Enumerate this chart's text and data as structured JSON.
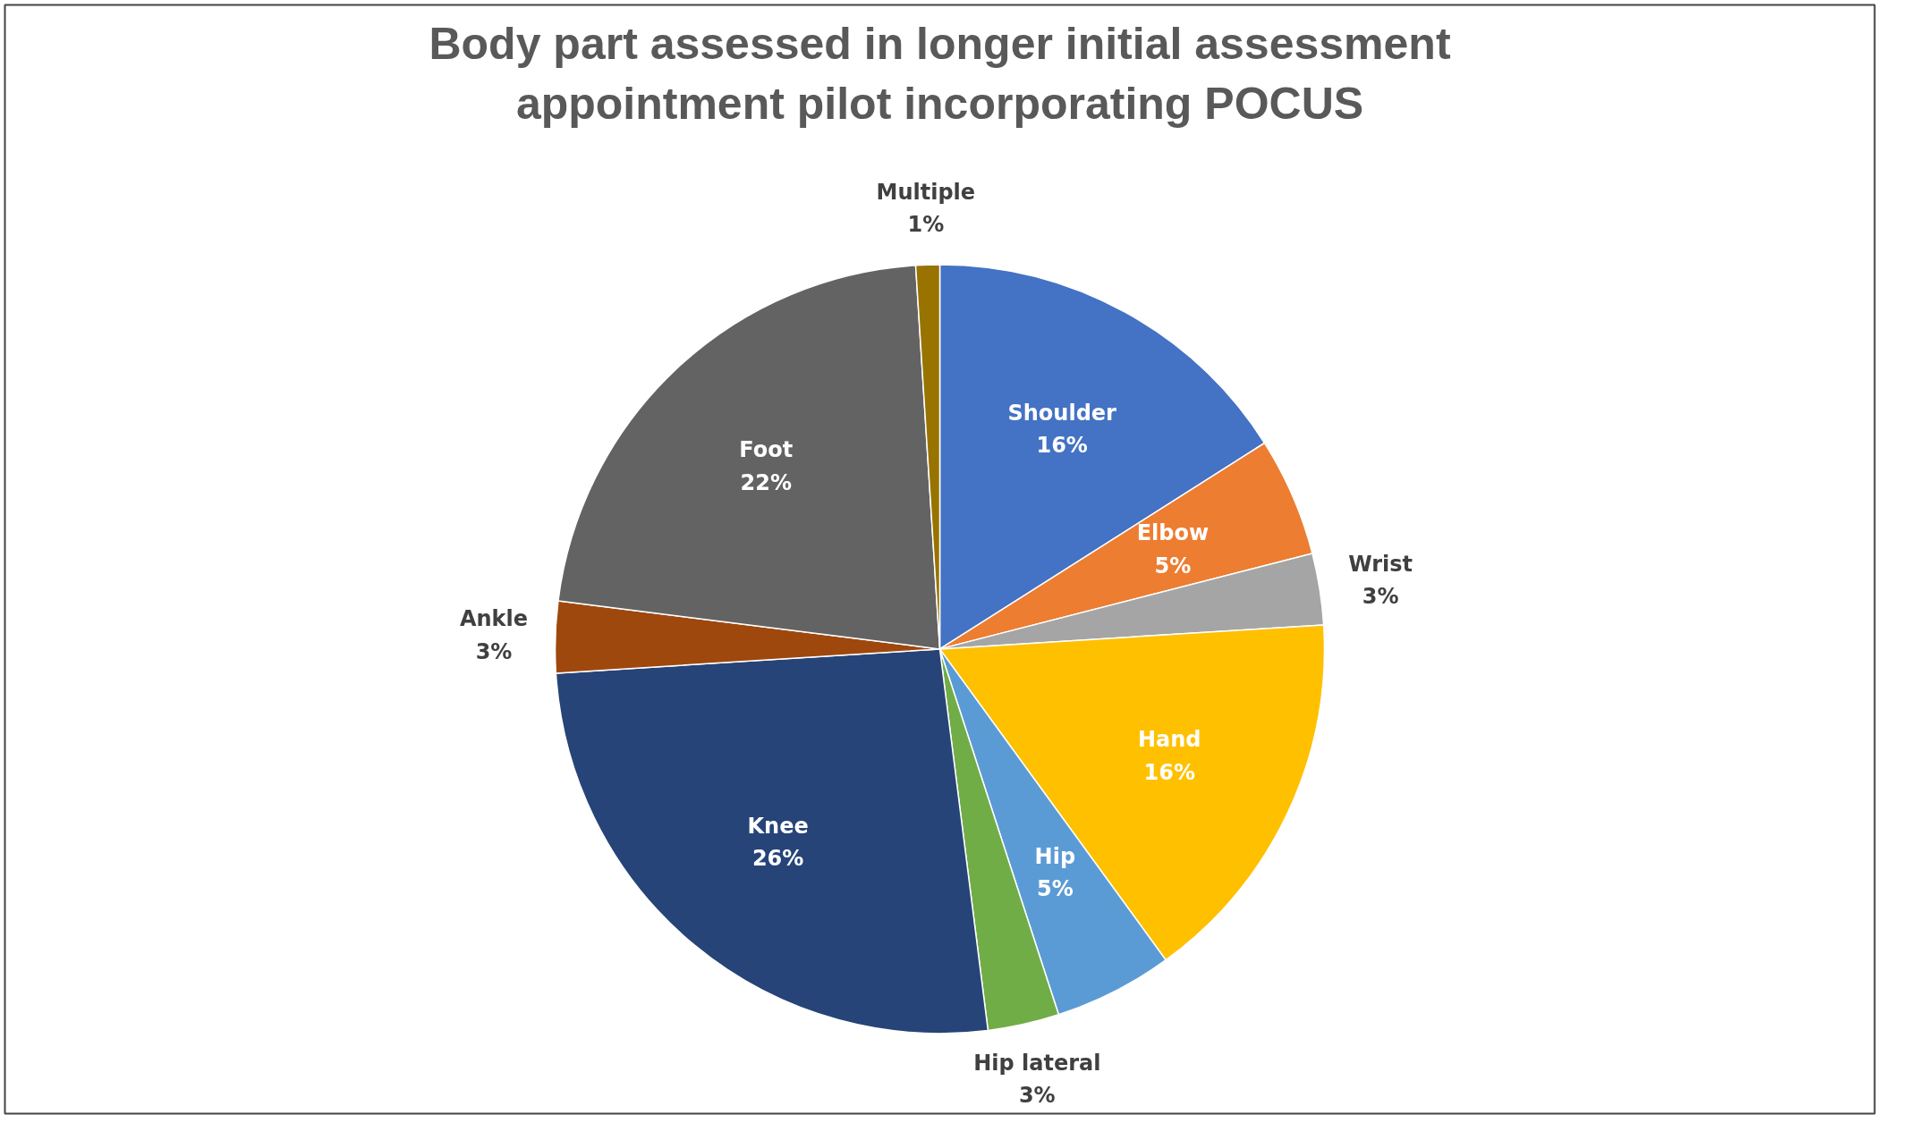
{
  "chart_data": {
    "type": "pie",
    "title": "Body part assessed in longer initial assessment appointment pilot incorporating POCUS",
    "categories": [
      "Shoulder",
      "Elbow",
      "Wrist",
      "Hand",
      "Hip",
      "Hip lateral",
      "Knee",
      "Ankle",
      "Foot",
      "Multiple"
    ],
    "values": [
      16,
      5,
      3,
      16,
      5,
      3,
      26,
      3,
      22,
      1
    ],
    "colors": [
      "#4472c4",
      "#ed7d31",
      "#a5a5a5",
      "#ffc000",
      "#5b9bd5",
      "#70ad47",
      "#264478",
      "#9e480e",
      "#636363",
      "#997300"
    ],
    "value_labels": [
      "16%",
      "5%",
      "3%",
      "16%",
      "5%",
      "3%",
      "26%",
      "3%",
      "22%",
      "1%"
    ],
    "legend": false
  }
}
